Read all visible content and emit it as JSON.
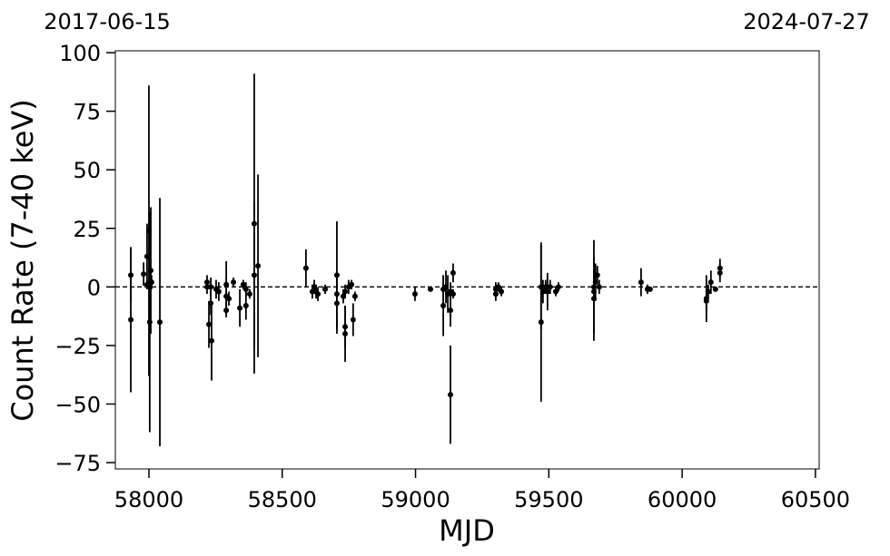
{
  "chart_data": {
    "type": "errorbar",
    "x_label": "MJD",
    "y_label": "Count Rate (7-40 keV)",
    "top_left_label": "2017-06-15",
    "top_right_label": "2024-07-27",
    "color": "#000000",
    "reference_line": 0,
    "xlim": [
      57874,
      60514
    ],
    "ylim": [
      -77.7,
      100.8
    ],
    "xticks": [
      58000,
      58500,
      59000,
      59500,
      60000,
      60500
    ],
    "yticks": [
      {
        "value": -75,
        "label": "−75"
      },
      {
        "value": -50,
        "label": "−50"
      },
      {
        "value": -25,
        "label": "−25"
      },
      0,
      25,
      50,
      75,
      100
    ],
    "x": [
      57932,
      57932,
      57980,
      57993,
      57993,
      58000,
      58003,
      58007,
      58010,
      58041,
      58218,
      58218,
      58225,
      58232,
      58232,
      58235,
      58252,
      58262,
      58290,
      58290,
      58290,
      58300,
      58317,
      58341,
      58354,
      58364,
      58364,
      58378,
      58395,
      58395,
      58409,
      58589,
      58613,
      58620,
      58627,
      58634,
      58661,
      58705,
      58705,
      58705,
      58729,
      58736,
      58736,
      58736,
      58749,
      58760,
      58766,
      58773,
      58998,
      59056,
      59104,
      59104,
      59114,
      59121,
      59131,
      59131,
      59131,
      59141,
      59141,
      59301,
      59301,
      59311,
      59322,
      59471,
      59471,
      59478,
      59488,
      59495,
      59505,
      59526,
      59536,
      59669,
      59669,
      59669,
      59675,
      59682,
      59689,
      59846,
      59870,
      59880,
      60091,
      60091,
      60098,
      60108,
      60125,
      60142,
      60142
    ],
    "values": [
      5,
      -14,
      5.5,
      13,
      1,
      24,
      -15,
      7,
      2,
      -15,
      2,
      0,
      -16,
      -7,
      0,
      -23,
      -1,
      -2,
      1,
      -4,
      -10,
      -5,
      2,
      -9,
      1,
      -8,
      -1,
      -3,
      27,
      5,
      9,
      8,
      -2,
      0,
      -2,
      -3,
      -1,
      5,
      -3,
      -7,
      -4,
      -17,
      -20,
      -2,
      0,
      1,
      -14,
      -4,
      -3,
      -1,
      -1,
      -8,
      0,
      -3,
      -46,
      -10,
      -2,
      6,
      -3,
      -1,
      -3,
      0,
      -2,
      -15,
      0,
      -2,
      0,
      -2,
      0,
      -2,
      0,
      0,
      -5,
      -2,
      2,
      5,
      0,
      2,
      -1,
      -1,
      -5,
      -6,
      -2,
      2,
      -1,
      6,
      8
    ],
    "errors": [
      11.5,
      31,
      5,
      14,
      2,
      62,
      47,
      27,
      3,
      53,
      3,
      3,
      10,
      5,
      4,
      17,
      4,
      4,
      10,
      8,
      3,
      3,
      2,
      8,
      2,
      6,
      3,
      2,
      64,
      31,
      39,
      8,
      3,
      3,
      3,
      3,
      2,
      23,
      4,
      13,
      3,
      9,
      12,
      3,
      3,
      2,
      7,
      2,
      3,
      1,
      6,
      13,
      7,
      8,
      21,
      7,
      4,
      4,
      2,
      3,
      3,
      2,
      2,
      34,
      18,
      5,
      3,
      8,
      3,
      2,
      2,
      20,
      18,
      5,
      8,
      4,
      3,
      6,
      2,
      1,
      10,
      4,
      3,
      5,
      1,
      4,
      4
    ]
  }
}
